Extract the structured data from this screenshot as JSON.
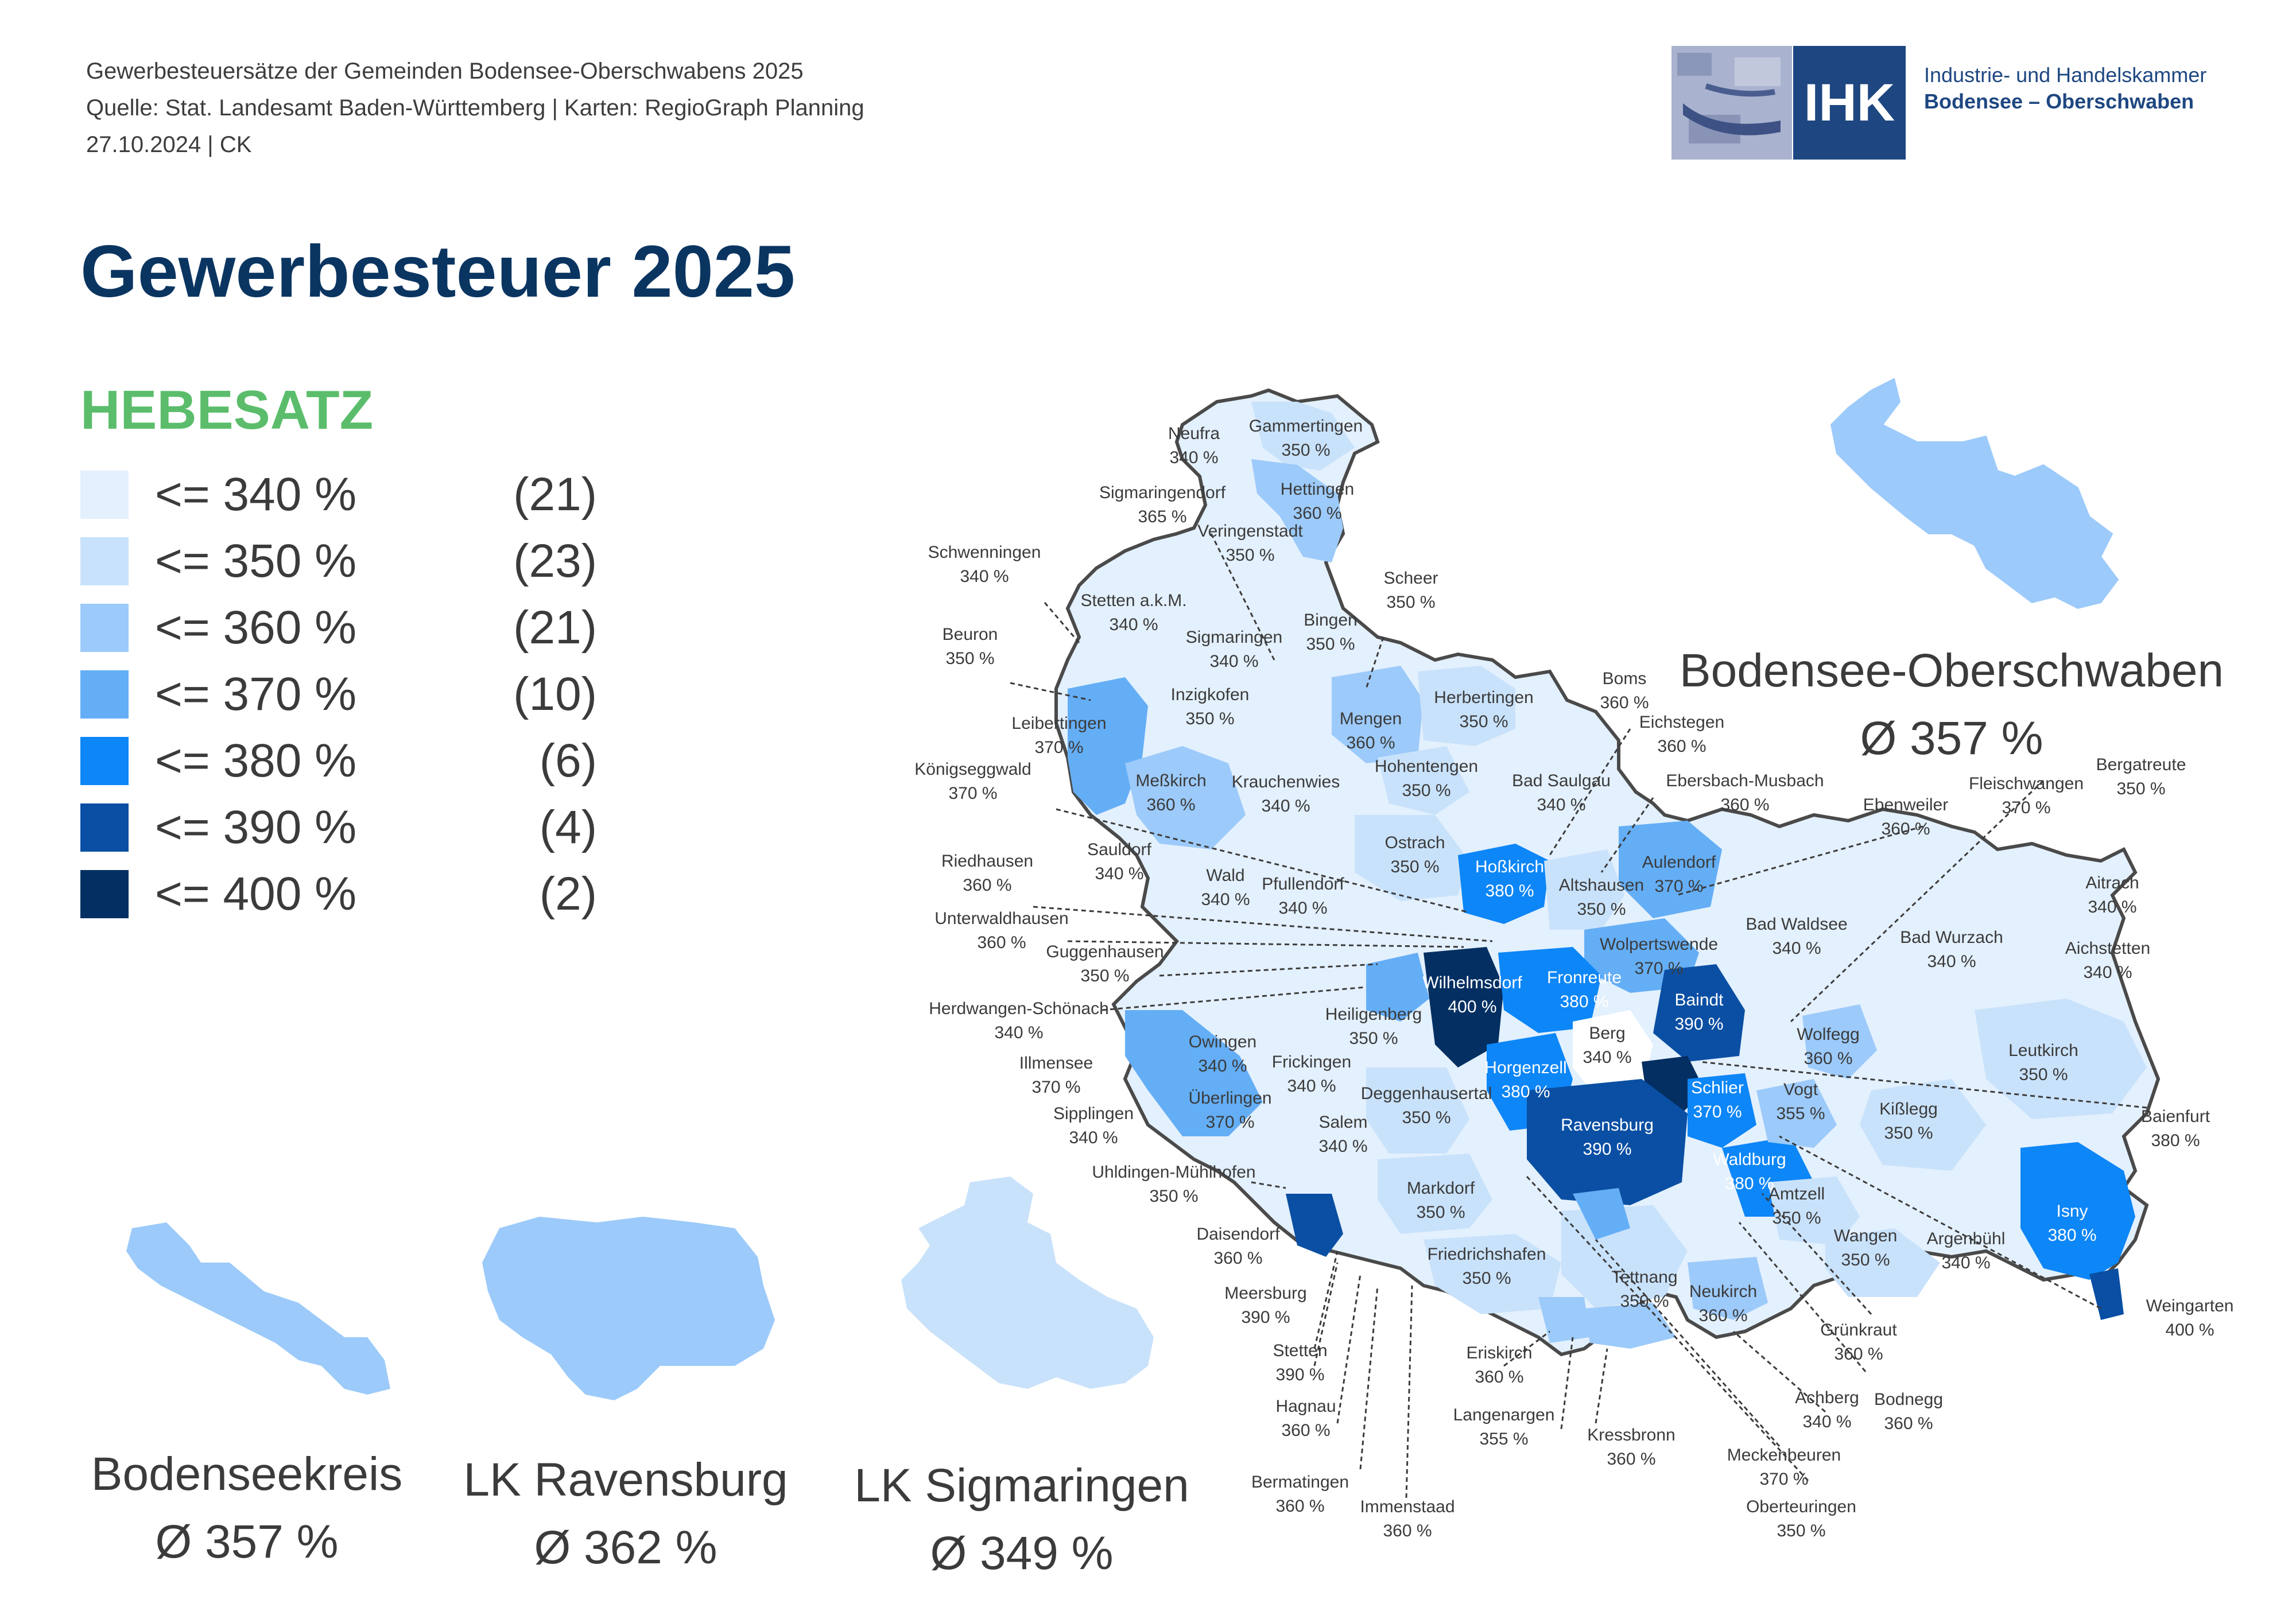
{
  "header": {
    "line1": "Gewerbesteuersätze der Gemeinden Bodensee-Oberschwabens 2025",
    "line2": "Quelle: Stat. Landesamt Baden-Württemberg | Karten: RegioGraph Planning",
    "line3": "27.10.2024 | CK"
  },
  "title": "Gewerbesteuer 2025",
  "logo": {
    "abbr": "IHK",
    "line1": "Industrie- und Handelskammer",
    "line2": "Bodensee – Oberschwaben"
  },
  "legend": {
    "title": "HEBESATZ",
    "items": [
      {
        "label": "<=  340 %",
        "count": "(21)",
        "color": "#e3f0fd"
      },
      {
        "label": "<=  350 %",
        "count": "(23)",
        "color": "#c9e2fb"
      },
      {
        "label": "<=  360 %",
        "count": "(21)",
        "color": "#9ccafa"
      },
      {
        "label": "<=  370 %",
        "count": "(10)",
        "color": "#64aef6"
      },
      {
        "label": "<=  380 %",
        "count": "(6)",
        "color": "#0d86f7"
      },
      {
        "label": "<=  390 %",
        "count": "(4)",
        "color": "#0a4fa3"
      },
      {
        "label": "<=  400 %",
        "count": "(2)",
        "color": "#032f62"
      }
    ]
  },
  "regions": {
    "bodensee_oberschwaben": {
      "name": "Bodensee-Oberschwaben",
      "avg": "Ø 357 %",
      "color": "#9ccafa"
    },
    "bodenseekreis": {
      "name": "Bodenseekreis",
      "avg": "Ø 357 %",
      "color": "#9ccafa"
    },
    "lk_ravensburg": {
      "name": "LK Ravensburg",
      "avg": "Ø 362 %",
      "color": "#9ccafa"
    },
    "lk_sigmaringen": {
      "name": "LK Sigmaringen",
      "avg": "Ø 349 %",
      "color": "#c9e2fb"
    }
  },
  "municipalities": [
    {
      "name": "Neufra",
      "rate": "340 %"
    },
    {
      "name": "Gammertingen",
      "rate": "350 %"
    },
    {
      "name": "Hettingen",
      "rate": "360 %"
    },
    {
      "name": "Sigmaringendorf",
      "rate": "365 %"
    },
    {
      "name": "Veringenstadt",
      "rate": "350 %"
    },
    {
      "name": "Schwenningen",
      "rate": "340 %"
    },
    {
      "name": "Stetten a.k.M.",
      "rate": "340 %"
    },
    {
      "name": "Scheer",
      "rate": "350 %"
    },
    {
      "name": "Beuron",
      "rate": "350 %"
    },
    {
      "name": "Sigmaringen",
      "rate": "340 %"
    },
    {
      "name": "Bingen",
      "rate": "350 %"
    },
    {
      "name": "Boms",
      "rate": "360 %"
    },
    {
      "name": "Leibertingen",
      "rate": "370 %"
    },
    {
      "name": "Inzigkofen",
      "rate": "350 %"
    },
    {
      "name": "Mengen",
      "rate": "360 %"
    },
    {
      "name": "Herbertingen",
      "rate": "350 %"
    },
    {
      "name": "Eichstegen",
      "rate": "360 %"
    },
    {
      "name": "Königseggwald",
      "rate": "370 %"
    },
    {
      "name": "Meßkirch",
      "rate": "360 %"
    },
    {
      "name": "Krauchenwies",
      "rate": "340 %"
    },
    {
      "name": "Hohentengen",
      "rate": "350 %"
    },
    {
      "name": "Bad Saulgau",
      "rate": "340 %"
    },
    {
      "name": "Ebersbach-Musbach",
      "rate": "360 %"
    },
    {
      "name": "Fleischwangen",
      "rate": "370 %"
    },
    {
      "name": "Bergatreute",
      "rate": "350 %"
    },
    {
      "name": "Ebenweiler",
      "rate": "360 %"
    },
    {
      "name": "Sauldorf",
      "rate": "340 %"
    },
    {
      "name": "Ostrach",
      "rate": "350 %"
    },
    {
      "name": "Riedhausen",
      "rate": "360 %"
    },
    {
      "name": "Hoßkirch",
      "rate": "380 %"
    },
    {
      "name": "Aulendorf",
      "rate": "370 %"
    },
    {
      "name": "Wald",
      "rate": "340 %"
    },
    {
      "name": "Pfullendorf",
      "rate": "340 %"
    },
    {
      "name": "Altshausen",
      "rate": "350 %"
    },
    {
      "name": "Aitrach",
      "rate": "340 %"
    },
    {
      "name": "Unterwaldhausen",
      "rate": "360 %"
    },
    {
      "name": "Bad Waldsee",
      "rate": "340 %"
    },
    {
      "name": "Bad Wurzach",
      "rate": "340 %"
    },
    {
      "name": "Aichstetten",
      "rate": "340 %"
    },
    {
      "name": "Guggenhausen",
      "rate": "350 %"
    },
    {
      "name": "Wolpertswende",
      "rate": "370 %"
    },
    {
      "name": "Wilhelmsdorf",
      "rate": "400 %"
    },
    {
      "name": "Fronreute",
      "rate": "380 %"
    },
    {
      "name": "Baindt",
      "rate": "390 %"
    },
    {
      "name": "Herdwangen-Schönach",
      "rate": "340 %"
    },
    {
      "name": "Heiligenberg",
      "rate": "350 %"
    },
    {
      "name": "Owingen",
      "rate": "340 %"
    },
    {
      "name": "Frickingen",
      "rate": "340 %"
    },
    {
      "name": "Berg",
      "rate": "340 %"
    },
    {
      "name": "Wolfegg",
      "rate": "360 %"
    },
    {
      "name": "Leutkirch",
      "rate": "350 %"
    },
    {
      "name": "Illmensee",
      "rate": "370 %"
    },
    {
      "name": "Horgenzell",
      "rate": "380 %"
    },
    {
      "name": "Schlier",
      "rate": "370 %"
    },
    {
      "name": "Vogt",
      "rate": "355 %"
    },
    {
      "name": "Kißlegg",
      "rate": "350 %"
    },
    {
      "name": "Baienfurt",
      "rate": "380 %"
    },
    {
      "name": "Überlingen",
      "rate": "370 %"
    },
    {
      "name": "Deggenhausertal",
      "rate": "350 %"
    },
    {
      "name": "Ravensburg",
      "rate": "390 %"
    },
    {
      "name": "Sipplingen",
      "rate": "340 %"
    },
    {
      "name": "Salem",
      "rate": "340 %"
    },
    {
      "name": "Waldburg",
      "rate": "380 %"
    },
    {
      "name": "Uhldingen-Mühlhofen",
      "rate": "350 %"
    },
    {
      "name": "Markdorf",
      "rate": "350 %"
    },
    {
      "name": "Amtzell",
      "rate": "350 %"
    },
    {
      "name": "Isny",
      "rate": "380 %"
    },
    {
      "name": "Daisendorf",
      "rate": "360 %"
    },
    {
      "name": "Friedrichshafen",
      "rate": "350 %"
    },
    {
      "name": "Wangen",
      "rate": "350 %"
    },
    {
      "name": "Argenbühl",
      "rate": "340 %"
    },
    {
      "name": "Meersburg",
      "rate": "390 %"
    },
    {
      "name": "Tettnang",
      "rate": "350 %"
    },
    {
      "name": "Neukirch",
      "rate": "360 %"
    },
    {
      "name": "Weingarten",
      "rate": "400 %"
    },
    {
      "name": "Stetten",
      "rate": "390 %"
    },
    {
      "name": "Grünkraut",
      "rate": "360 %"
    },
    {
      "name": "Eriskirch",
      "rate": "360 %"
    },
    {
      "name": "Hagnau",
      "rate": "360 %"
    },
    {
      "name": "Achberg",
      "rate": "340 %"
    },
    {
      "name": "Bodnegg",
      "rate": "360 %"
    },
    {
      "name": "Langenargen",
      "rate": "355 %"
    },
    {
      "name": "Kressbronn",
      "rate": "360 %"
    },
    {
      "name": "Meckenbeuren",
      "rate": "370 %"
    },
    {
      "name": "Bermatingen",
      "rate": "360 %"
    },
    {
      "name": "Oberteuringen",
      "rate": "350 %"
    },
    {
      "name": "Immenstaad",
      "rate": "360 %"
    }
  ]
}
